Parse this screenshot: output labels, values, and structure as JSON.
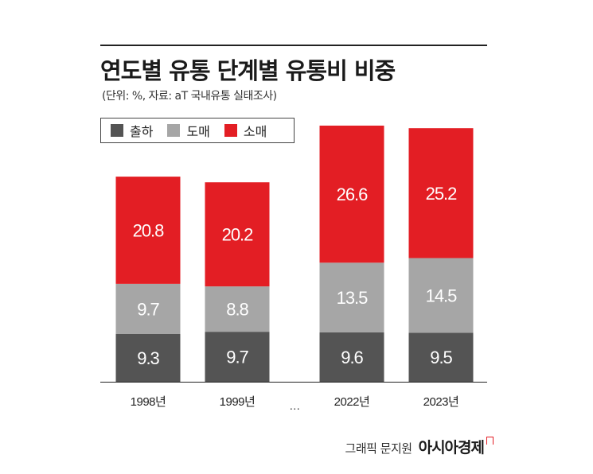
{
  "title": "연도별 유통 단계별 유통비 비중",
  "subtitle": "(단위: %, 자료: aT 국내유통 실태조사)",
  "source": {
    "credit": "그래픽 문지원",
    "brand": "아시아경제"
  },
  "colors": {
    "shipping": "#545454",
    "wholesale": "#a6a6a6",
    "retail": "#e31e24",
    "label_on_dark": "#ffffff"
  },
  "chart_data": {
    "type": "bar",
    "stacked": true,
    "categories": [
      "1998년",
      "1999년",
      "…",
      "2022년",
      "2023년"
    ],
    "series": [
      {
        "name": "출하",
        "values": [
          9.3,
          9.7,
          null,
          9.6,
          9.5
        ]
      },
      {
        "name": "도매",
        "values": [
          9.7,
          8.8,
          null,
          13.5,
          14.5
        ]
      },
      {
        "name": "소매",
        "values": [
          20.8,
          20.2,
          null,
          26.6,
          25.2
        ]
      }
    ],
    "legend_position": "top-left",
    "grid": false,
    "ylim": [
      0,
      50
    ]
  }
}
